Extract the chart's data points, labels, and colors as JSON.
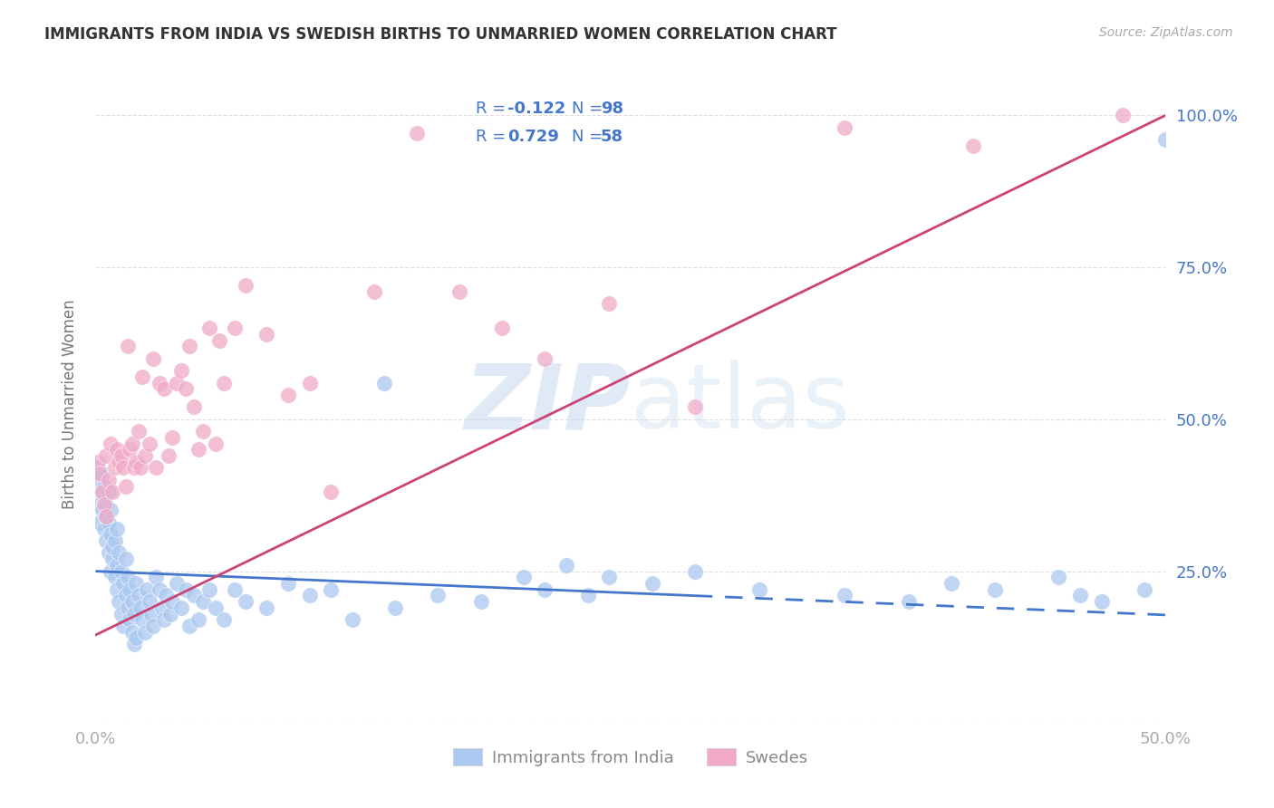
{
  "title": "IMMIGRANTS FROM INDIA VS SWEDISH BIRTHS TO UNMARRIED WOMEN CORRELATION CHART",
  "source": "Source: ZipAtlas.com",
  "ylabel": "Births to Unmarried Women",
  "legend_label_india": "Immigrants from India",
  "legend_label_swedes": "Swedes",
  "R_india": "-0.122",
  "N_india": "98",
  "R_swedes": "0.729",
  "N_swedes": "58",
  "color_india_scatter": "#aac8f0",
  "color_swedes_scatter": "#f0aac8",
  "color_india_line": "#4477cc",
  "color_swedes_line": "#cc4477",
  "color_right_labels": "#4477cc",
  "color_legend_all": "#4477cc",
  "color_xlabel": "#aaaaaa",
  "color_title": "#333333",
  "color_source": "#aaaaaa",
  "color_ylabel": "#777777",
  "color_grid": "#e0e0e0",
  "color_bg": "#ffffff",
  "color_legend_border": "#cccccc",
  "xlim": [
    0.0,
    0.5
  ],
  "ylim": [
    0.0,
    1.05
  ],
  "india_line_x0": 0.0,
  "india_line_x1": 0.5,
  "india_line_y0": 0.25,
  "india_line_y1": 0.178,
  "india_line_solid_end": 0.28,
  "swedes_line_x0": 0.0,
  "swedes_line_x1": 0.5,
  "swedes_line_y0": 0.145,
  "swedes_line_y1": 1.0,
  "india_x": [
    0.001,
    0.001,
    0.002,
    0.002,
    0.002,
    0.003,
    0.003,
    0.003,
    0.004,
    0.004,
    0.004,
    0.005,
    0.005,
    0.005,
    0.006,
    0.006,
    0.006,
    0.007,
    0.007,
    0.007,
    0.008,
    0.008,
    0.009,
    0.009,
    0.01,
    0.01,
    0.01,
    0.011,
    0.011,
    0.012,
    0.012,
    0.013,
    0.013,
    0.014,
    0.014,
    0.015,
    0.015,
    0.016,
    0.016,
    0.017,
    0.017,
    0.018,
    0.018,
    0.019,
    0.019,
    0.02,
    0.021,
    0.022,
    0.023,
    0.024,
    0.025,
    0.026,
    0.027,
    0.028,
    0.03,
    0.031,
    0.032,
    0.033,
    0.035,
    0.036,
    0.038,
    0.04,
    0.042,
    0.044,
    0.046,
    0.048,
    0.05,
    0.053,
    0.056,
    0.06,
    0.065,
    0.07,
    0.08,
    0.09,
    0.1,
    0.11,
    0.12,
    0.14,
    0.16,
    0.18,
    0.2,
    0.21,
    0.22,
    0.23,
    0.24,
    0.26,
    0.28,
    0.31,
    0.35,
    0.38,
    0.4,
    0.42,
    0.45,
    0.46,
    0.47,
    0.49,
    0.5,
    0.135
  ],
  "india_y": [
    0.38,
    0.42,
    0.36,
    0.4,
    0.33,
    0.38,
    0.41,
    0.35,
    0.37,
    0.39,
    0.32,
    0.34,
    0.3,
    0.36,
    0.28,
    0.33,
    0.38,
    0.25,
    0.31,
    0.35,
    0.27,
    0.29,
    0.24,
    0.3,
    0.22,
    0.26,
    0.32,
    0.2,
    0.28,
    0.18,
    0.25,
    0.16,
    0.23,
    0.21,
    0.27,
    0.19,
    0.24,
    0.17,
    0.22,
    0.15,
    0.2,
    0.13,
    0.18,
    0.14,
    0.23,
    0.21,
    0.19,
    0.17,
    0.15,
    0.22,
    0.2,
    0.18,
    0.16,
    0.24,
    0.22,
    0.19,
    0.17,
    0.21,
    0.18,
    0.2,
    0.23,
    0.19,
    0.22,
    0.16,
    0.21,
    0.17,
    0.2,
    0.22,
    0.19,
    0.17,
    0.22,
    0.2,
    0.19,
    0.23,
    0.21,
    0.22,
    0.17,
    0.19,
    0.21,
    0.2,
    0.24,
    0.22,
    0.26,
    0.21,
    0.24,
    0.23,
    0.25,
    0.22,
    0.21,
    0.2,
    0.23,
    0.22,
    0.24,
    0.21,
    0.2,
    0.22,
    0.96,
    0.56
  ],
  "swedes_x": [
    0.001,
    0.002,
    0.003,
    0.004,
    0.005,
    0.005,
    0.006,
    0.007,
    0.008,
    0.009,
    0.01,
    0.011,
    0.012,
    0.013,
    0.014,
    0.015,
    0.016,
    0.017,
    0.018,
    0.019,
    0.02,
    0.021,
    0.022,
    0.023,
    0.025,
    0.027,
    0.028,
    0.03,
    0.032,
    0.034,
    0.036,
    0.038,
    0.04,
    0.042,
    0.044,
    0.046,
    0.048,
    0.05,
    0.053,
    0.056,
    0.058,
    0.06,
    0.065,
    0.07,
    0.08,
    0.09,
    0.1,
    0.11,
    0.13,
    0.15,
    0.17,
    0.19,
    0.21,
    0.24,
    0.28,
    0.35,
    0.41,
    0.48
  ],
  "swedes_y": [
    0.43,
    0.41,
    0.38,
    0.36,
    0.34,
    0.44,
    0.4,
    0.46,
    0.38,
    0.42,
    0.45,
    0.43,
    0.44,
    0.42,
    0.39,
    0.62,
    0.45,
    0.46,
    0.42,
    0.43,
    0.48,
    0.42,
    0.57,
    0.44,
    0.46,
    0.6,
    0.42,
    0.56,
    0.55,
    0.44,
    0.47,
    0.56,
    0.58,
    0.55,
    0.62,
    0.52,
    0.45,
    0.48,
    0.65,
    0.46,
    0.63,
    0.56,
    0.65,
    0.72,
    0.64,
    0.54,
    0.56,
    0.38,
    0.71,
    0.97,
    0.71,
    0.65,
    0.6,
    0.69,
    0.52,
    0.98,
    0.95,
    1.0
  ]
}
